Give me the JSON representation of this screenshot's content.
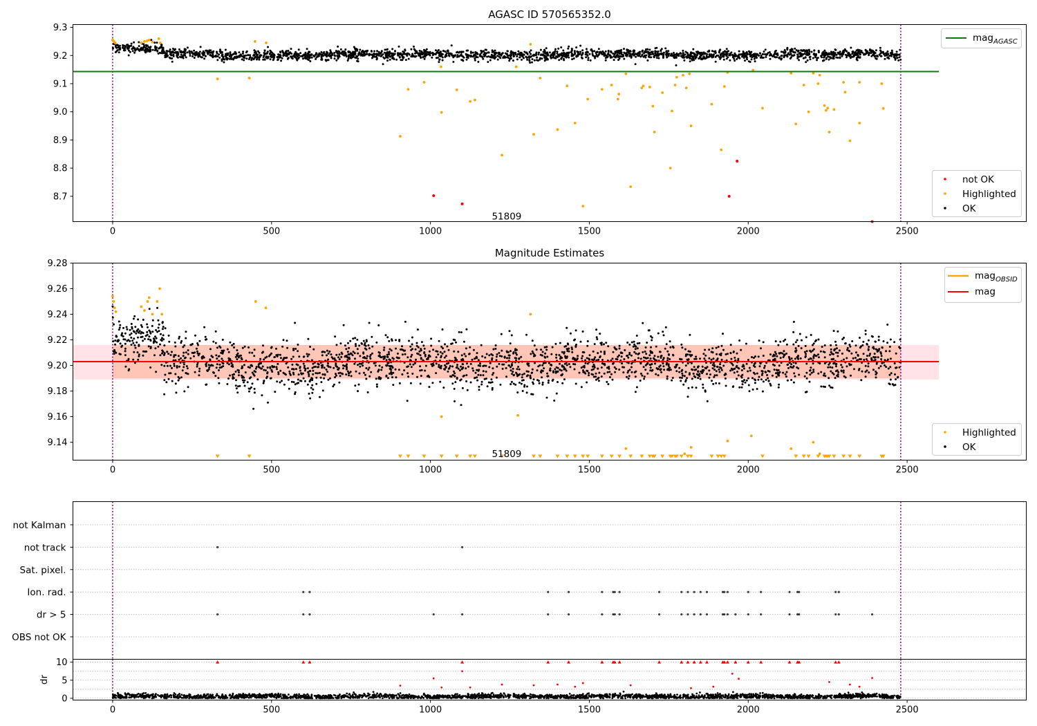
{
  "colors": {
    "ok": "#000000",
    "highlighted": "#ffa500",
    "not_ok": "#ff0000",
    "mag_agasc": "#008000",
    "mag_obsid": "#ffa500",
    "mag": "#ff0000",
    "band_pink": "#ffc0cb",
    "band_orange": "#ffa07a",
    "obs_boundary": "#800080",
    "grid": "#b0b0b0"
  },
  "chart_data": [
    {
      "type": "scatter",
      "title": "AGASC ID 570565352.0",
      "xlabel": "",
      "ylabel": "",
      "xlim": [
        -125,
        2875
      ],
      "ylim": [
        8.61,
        9.31
      ],
      "x_ticks": [
        0,
        500,
        1000,
        1500,
        2000,
        2500
      ],
      "y_ticks": [
        8.7,
        8.8,
        8.9,
        9.0,
        9.1,
        9.2,
        9.3
      ],
      "y_tick_labels": [
        "8.7",
        "8.8",
        "8.9",
        "9.0",
        "9.1",
        "9.2",
        "9.3"
      ],
      "obs_boundaries": [
        0,
        2480
      ],
      "obs_label": {
        "text": "51809",
        "x": 1240,
        "y": 8.63
      },
      "legend_upper": [
        {
          "label": "mag",
          "sub": "AGASC",
          "style": "line",
          "color_key": "mag_agasc"
        }
      ],
      "legend_lower": [
        {
          "label": "not OK",
          "color_key": "not_ok"
        },
        {
          "label": "Highlighted",
          "color_key": "highlighted"
        },
        {
          "label": "OK",
          "color_key": "ok"
        }
      ],
      "mag_agasc": {
        "value": 9.143,
        "x_range": [
          -125,
          2600
        ]
      },
      "ok_trend": {
        "x_range": [
          0,
          2480
        ],
        "base": 9.205,
        "spread": 0.009,
        "segments": [
          [
            0,
            40,
            9.225
          ],
          [
            40,
            160,
            9.222
          ],
          [
            160,
            2480,
            9.203
          ]
        ]
      },
      "highlighted_points": [
        [
          0,
          9.255
        ],
        [
          4,
          9.25
        ],
        [
          8,
          9.245
        ],
        [
          90,
          9.245
        ],
        [
          100,
          9.25
        ],
        [
          108,
          9.252
        ],
        [
          115,
          9.255
        ],
        [
          125,
          9.248
        ],
        [
          145,
          9.26
        ],
        [
          150,
          9.245
        ],
        [
          330,
          9.117
        ],
        [
          430,
          9.12
        ],
        [
          448,
          9.25
        ],
        [
          483,
          9.245
        ],
        [
          905,
          8.913
        ],
        [
          930,
          9.08
        ],
        [
          980,
          9.105
        ],
        [
          1033,
          9.16
        ],
        [
          1035,
          8.998
        ],
        [
          1083,
          9.078
        ],
        [
          1125,
          9.037
        ],
        [
          1140,
          9.042
        ],
        [
          1225,
          8.846
        ],
        [
          1270,
          9.16
        ],
        [
          1315,
          9.24
        ],
        [
          1325,
          8.92
        ],
        [
          1345,
          9.12
        ],
        [
          1400,
          8.937
        ],
        [
          1430,
          9.092
        ],
        [
          1455,
          8.96
        ],
        [
          1480,
          8.665
        ],
        [
          1495,
          9.045
        ],
        [
          1540,
          9.08
        ],
        [
          1570,
          9.095
        ],
        [
          1590,
          9.045
        ],
        [
          1593,
          9.063
        ],
        [
          1615,
          9.135
        ],
        [
          1630,
          8.734
        ],
        [
          1665,
          9.085
        ],
        [
          1670,
          9.092
        ],
        [
          1690,
          9.088
        ],
        [
          1700,
          9.02
        ],
        [
          1705,
          8.928
        ],
        [
          1730,
          9.068
        ],
        [
          1755,
          8.8
        ],
        [
          1760,
          9.003
        ],
        [
          1770,
          9.095
        ],
        [
          1775,
          9.123
        ],
        [
          1795,
          9.13
        ],
        [
          1805,
          9.085
        ],
        [
          1815,
          9.135
        ],
        [
          1820,
          8.95
        ],
        [
          1885,
          9.027
        ],
        [
          1915,
          8.865
        ],
        [
          1925,
          9.09
        ],
        [
          1935,
          9.14
        ],
        [
          2015,
          9.148
        ],
        [
          2045,
          9.013
        ],
        [
          2135,
          9.137
        ],
        [
          2150,
          8.957
        ],
        [
          2175,
          9.095
        ],
        [
          2190,
          9.0
        ],
        [
          2205,
          9.137
        ],
        [
          2220,
          9.1
        ],
        [
          2225,
          9.13
        ],
        [
          2240,
          9.022
        ],
        [
          2245,
          9.005
        ],
        [
          2250,
          9.013
        ],
        [
          2255,
          8.928
        ],
        [
          2270,
          9.008
        ],
        [
          2300,
          9.105
        ],
        [
          2305,
          9.07
        ],
        [
          2320,
          8.897
        ],
        [
          2350,
          8.96
        ],
        [
          2350,
          9.105
        ],
        [
          2420,
          9.1
        ],
        [
          2425,
          9.012
        ]
      ],
      "not_ok_points": [
        [
          1010,
          8.702
        ],
        [
          1100,
          8.673
        ],
        [
          1940,
          8.7
        ],
        [
          1965,
          8.825
        ],
        [
          2390,
          8.61
        ]
      ]
    },
    {
      "type": "scatter",
      "title": "Magnitude Estimates",
      "xlabel": "",
      "ylabel": "",
      "xlim": [
        -125,
        2875
      ],
      "ylim": [
        9.126,
        9.28
      ],
      "x_ticks": [
        0,
        500,
        1000,
        1500,
        2000,
        2500
      ],
      "y_ticks": [
        9.14,
        9.16,
        9.18,
        9.2,
        9.22,
        9.24,
        9.26,
        9.28
      ],
      "y_tick_labels": [
        "9.14",
        "9.16",
        "9.18",
        "9.20",
        "9.22",
        "9.24",
        "9.26",
        "9.28"
      ],
      "obs_boundaries": [
        0,
        2480
      ],
      "obs_label": {
        "text": "51809",
        "x": 1240,
        "y": 9.131
      },
      "legend_upper": [
        {
          "label": "mag",
          "sub": "OBSID",
          "style": "line",
          "color_key": "mag_obsid"
        },
        {
          "label": "mag",
          "sub": "",
          "style": "line",
          "color_key": "mag"
        }
      ],
      "legend_lower": [
        {
          "label": "Highlighted",
          "color_key": "highlighted"
        },
        {
          "label": "OK",
          "color_key": "ok"
        }
      ],
      "mag": {
        "value": 9.203,
        "x_range": [
          -125,
          2600
        ]
      },
      "mag_band": {
        "low": 9.189,
        "high": 9.216,
        "x_range": [
          -125,
          2600
        ]
      },
      "mag_obsid": {
        "value": 9.203,
        "band_low": 9.19,
        "band_high": 9.216,
        "x_range": [
          0,
          2480
        ]
      },
      "ok_trend": {
        "x_range": [
          0,
          2480
        ],
        "base": 9.203,
        "spread": 0.01,
        "segments": [
          [
            0,
            40,
            9.222
          ],
          [
            40,
            160,
            9.218
          ],
          [
            160,
            2480,
            9.202
          ]
        ]
      },
      "highlighted_points": [
        [
          0,
          9.254
        ],
        [
          3,
          9.25
        ],
        [
          6,
          9.245
        ],
        [
          10,
          9.242
        ],
        [
          90,
          9.246
        ],
        [
          100,
          9.243
        ],
        [
          110,
          9.25
        ],
        [
          115,
          9.253
        ],
        [
          125,
          9.24
        ],
        [
          140,
          9.25
        ],
        [
          148,
          9.26
        ],
        [
          155,
          9.24
        ],
        [
          450,
          9.25
        ],
        [
          482,
          9.245
        ],
        [
          1035,
          9.16
        ],
        [
          1275,
          9.161
        ],
        [
          1315,
          9.24
        ],
        [
          1615,
          9.135
        ],
        [
          1800,
          9.131
        ],
        [
          1820,
          9.136
        ],
        [
          1935,
          9.141
        ],
        [
          2010,
          9.145
        ],
        [
          2135,
          9.135
        ],
        [
          2205,
          9.14
        ],
        [
          2225,
          9.131
        ]
      ],
      "below_range_x": [
        330,
        430,
        905,
        930,
        980,
        1035,
        1083,
        1125,
        1140,
        1225,
        1325,
        1345,
        1400,
        1430,
        1455,
        1480,
        1495,
        1540,
        1570,
        1595,
        1630,
        1665,
        1690,
        1700,
        1705,
        1730,
        1755,
        1760,
        1770,
        1775,
        1790,
        1810,
        1820,
        1885,
        1905,
        1915,
        1925,
        2045,
        2150,
        2175,
        2190,
        2220,
        2240,
        2245,
        2250,
        2255,
        2270,
        2300,
        2320,
        2350,
        2420,
        2425
      ]
    },
    {
      "type": "scatter",
      "title": "",
      "xlabel": "",
      "ylabel": "",
      "xlim": [
        -125,
        2875
      ],
      "x_ticks": [
        0,
        500,
        1000,
        1500,
        2000,
        2500
      ],
      "obs_boundaries": [
        0,
        2480
      ],
      "categories": [
        "not Kalman",
        "not track",
        "Sat. pixel.",
        "Ion. rad.",
        "dr > 5",
        "OBS not OK"
      ],
      "flag_points": {
        "not track": [
          330,
          1100
        ],
        "Ion. rad.": [
          600,
          620,
          1370,
          1435,
          1540,
          1575,
          1580,
          1595,
          1720,
          1790,
          1810,
          1830,
          1850,
          1870,
          1920,
          1925,
          1935,
          2000,
          2040,
          2130,
          2155,
          2160,
          2275,
          2285
        ],
        "dr > 5": [
          330,
          600,
          620,
          1010,
          1100,
          1370,
          1435,
          1540,
          1575,
          1580,
          1595,
          1720,
          1790,
          1810,
          1830,
          1850,
          1870,
          1920,
          1925,
          1935,
          1960,
          2000,
          2040,
          2130,
          2155,
          2160,
          2275,
          2285,
          2390
        ]
      }
    },
    {
      "type": "scatter",
      "title": "",
      "xlabel": "",
      "ylabel": "dr",
      "xlim": [
        -125,
        2875
      ],
      "ylim": [
        -0.5,
        10.8
      ],
      "x_ticks": [
        0,
        500,
        1000,
        1500,
        2000,
        2500
      ],
      "x_tick_labels": [
        "0",
        "500",
        "1000",
        "1500",
        "2000",
        "2500"
      ],
      "y_ticks": [
        0,
        5,
        10
      ],
      "y_tick_labels": [
        "0",
        "5",
        "10"
      ],
      "obs_boundaries": [
        0,
        2480
      ],
      "ok_trend": {
        "x_range": [
          0,
          2480
        ],
        "base": 0.5,
        "spread": 0.35
      },
      "capped_points_x": [
        330,
        600,
        620,
        1100,
        1370,
        1435,
        1540,
        1575,
        1580,
        1595,
        1720,
        1790,
        1810,
        1830,
        1850,
        1870,
        1920,
        1925,
        1935,
        1960,
        2000,
        2040,
        2130,
        2155,
        2160,
        2275,
        2285
      ],
      "red_points": [
        [
          905,
          3.5
        ],
        [
          1010,
          5.5
        ],
        [
          1035,
          3.0
        ],
        [
          1100,
          7.5
        ],
        [
          1125,
          3.0
        ],
        [
          1225,
          3.8
        ],
        [
          1325,
          3.6
        ],
        [
          1400,
          3.8
        ],
        [
          1455,
          3.2
        ],
        [
          1480,
          4.2
        ],
        [
          1630,
          3.6
        ],
        [
          1820,
          2.8
        ],
        [
          1890,
          3.2
        ],
        [
          1950,
          6.8
        ],
        [
          1970,
          5.4
        ],
        [
          2255,
          4.5
        ],
        [
          2320,
          3.8
        ],
        [
          2350,
          3.2
        ],
        [
          2390,
          5.6
        ]
      ]
    }
  ]
}
